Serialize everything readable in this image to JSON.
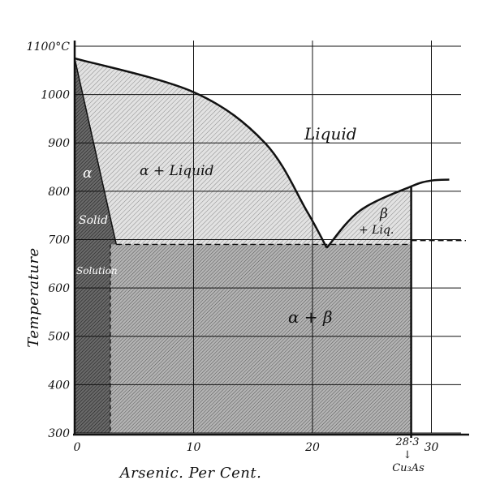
{
  "diagram": {
    "x_axis": {
      "title": "Arsenic. Per Cent.",
      "ticks": [
        {
          "label": "0",
          "value": 0
        },
        {
          "label": "10",
          "value": 10
        },
        {
          "label": "20",
          "value": 20
        },
        {
          "label": "30",
          "value": 30
        }
      ],
      "range": [
        0,
        34
      ]
    },
    "y_axis": {
      "title": "Temperature",
      "unit": "°C",
      "ticks": [
        {
          "label": "300",
          "value": 300
        },
        {
          "label": "400",
          "value": 400
        },
        {
          "label": "500",
          "value": 500
        },
        {
          "label": "600",
          "value": 600
        },
        {
          "label": "700",
          "value": 700
        },
        {
          "label": "800",
          "value": 800
        },
        {
          "label": "900",
          "value": 900
        },
        {
          "label": "1000",
          "value": 1000
        },
        {
          "label": "1100°C",
          "value": 1100
        }
      ],
      "range": [
        300,
        1100
      ]
    },
    "regions": {
      "liquid": "Liquid",
      "alpha_liquid": "α + Liquid",
      "alpha": "α",
      "solid": "Solid",
      "solution": "Solution",
      "alpha_beta": "α + β",
      "beta": "β",
      "beta_liq": "+ Liq."
    },
    "compound": {
      "composition_label": "28·3",
      "formula": "Cu₃As",
      "arrow": "↓",
      "percent": 28.3
    },
    "curves": {
      "liquidus_left": [
        [
          0,
          1075
        ],
        [
          10,
          1005
        ],
        [
          16,
          900
        ],
        [
          19.5,
          760
        ],
        [
          21.2,
          683
        ]
      ],
      "liquidus_right": [
        [
          21.2,
          683
        ],
        [
          24,
          760
        ],
        [
          28.3,
          810
        ],
        [
          30,
          822
        ],
        [
          31.5,
          824
        ]
      ],
      "solidus_alpha": [
        [
          0,
          1075
        ],
        [
          3.5,
          690
        ]
      ],
      "eutectic_temperature": 690,
      "alpha_solvus_percent": 3,
      "compound_dashed_temperature": 698
    },
    "colors": {
      "ink": "#111111",
      "light_shade": "#d9d9d9",
      "mid_shade": "#a9a9a9",
      "dark_shade": "#5f5f5f"
    }
  }
}
